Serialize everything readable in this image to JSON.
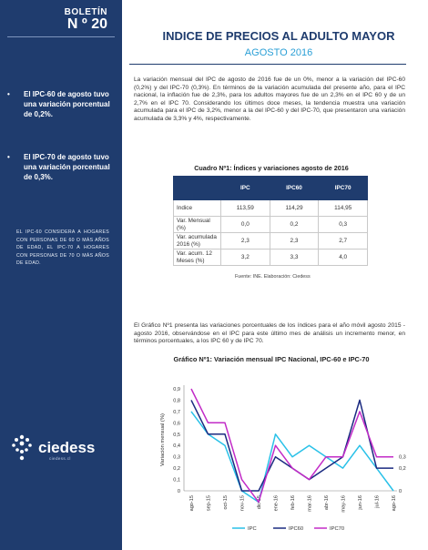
{
  "sidebar": {
    "boletin_label": "BOLETÍN",
    "boletin_number": "N º 20",
    "bullets": [
      {
        "symbol": "•",
        "text": "El IPC-60 de agosto tuvo una variación porcentual de 0,2%."
      },
      {
        "symbol": "•",
        "text": "El IPC-70 de agosto tuvo una variación porcentual de 0,3%."
      }
    ],
    "note": "EL IPC-60 CONSIDERA A HOGARES CON PERSONAS DE 60 O MÁS AÑOS DE EDAD, EL IPC-70 A HOGARES CON PERSONAS DE 70 O MÁS AÑOS DE EDAD.",
    "logo": {
      "name": "ciedess",
      "tagline": "ciedess.cl"
    }
  },
  "header": {
    "title": "INDICE DE PRECIOS AL ADULTO MAYOR",
    "subtitle": "AGOSTO 2016"
  },
  "intro_paragraph": "La variación mensual del IPC de agosto de 2016 fue de un 0%, menor a la variación del IPC-60 (0,2%) y del IPC-70 (0,3%). En términos de la variación acumulada del presente año, para el IPC nacional, la inflación fue de 2,3%, para los adultos mayores fue de un 2,3% en el IPC 60 y de un 2,7% en el IPC 70. Considerando los últimos doce meses, la tendencia muestra una variación acumulada para el IPC de 3,2%, menor a la del IPC-60 y del IPC-70, que presentaron una variación acumulada de 3,3% y 4%, respectivamente.",
  "table": {
    "title": "Cuadro Nº1: Índices y variaciones agosto de 2016",
    "columns": [
      "",
      "IPC",
      "IPC60",
      "IPC70"
    ],
    "rows": [
      {
        "label": "Indice",
        "values": [
          "113,59",
          "114,29",
          "114,95"
        ]
      },
      {
        "label": "Var. Mensual (%)",
        "values": [
          "0,0",
          "0,2",
          "0,3"
        ]
      },
      {
        "label": "Var. acumulada 2016 (%)",
        "values": [
          "2,3",
          "2,3",
          "2,7"
        ]
      },
      {
        "label": "Var. acum. 12 Meses (%)",
        "values": [
          "3,2",
          "3,3",
          "4,0"
        ]
      }
    ],
    "source": "Fuente: INE. Elaboración: Ciedess"
  },
  "chart_paragraph": "El Gráfico Nº1 presenta las variaciones porcentuales de los índices para el año móvil agosto 2015 - agosto 2016, observándose en el IPC para este último mes de análisis un incremento menor, en términos porcentuales, a los IPC 60 y de IPC 70.",
  "chart_data": {
    "type": "line",
    "title": "Gráfico Nº1: Variación mensual IPC Nacional, IPC-60 e IPC-70",
    "xlabel": "",
    "ylabel": "Variación mensual (%)",
    "categories": [
      "ago-15",
      "sep-15",
      "oct-15",
      "nov-15",
      "dic-15",
      "ene-16",
      "feb-16",
      "mar-16",
      "abr-16",
      "may-16",
      "jun-16",
      "jul-16",
      "ago-16"
    ],
    "ylim": [
      0,
      0.9
    ],
    "yticks": [
      "0",
      "0,1",
      "0,2",
      "0,3",
      "0,4",
      "0,5",
      "0,6",
      "0,7",
      "0,8",
      "0,9"
    ],
    "grid": false,
    "legend": "bottom",
    "series": [
      {
        "name": "IPC",
        "color": "#29c1e8",
        "values": [
          0.7,
          0.5,
          0.4,
          0.0,
          -0.1,
          0.5,
          0.3,
          0.4,
          0.3,
          0.2,
          0.4,
          0.2,
          0.0
        ]
      },
      {
        "name": "IPC60",
        "color": "#1a2a80",
        "values": [
          0.8,
          0.5,
          0.5,
          0.0,
          0.0,
          0.3,
          0.2,
          0.1,
          0.2,
          0.3,
          0.8,
          0.2,
          0.2
        ]
      },
      {
        "name": "IPC70",
        "color": "#c22bc7",
        "values": [
          0.9,
          0.6,
          0.6,
          0.1,
          -0.1,
          0.4,
          0.2,
          0.1,
          0.3,
          0.3,
          0.7,
          0.3,
          0.3
        ]
      }
    ],
    "end_labels": [
      "0,3",
      "0,2",
      "0"
    ]
  }
}
